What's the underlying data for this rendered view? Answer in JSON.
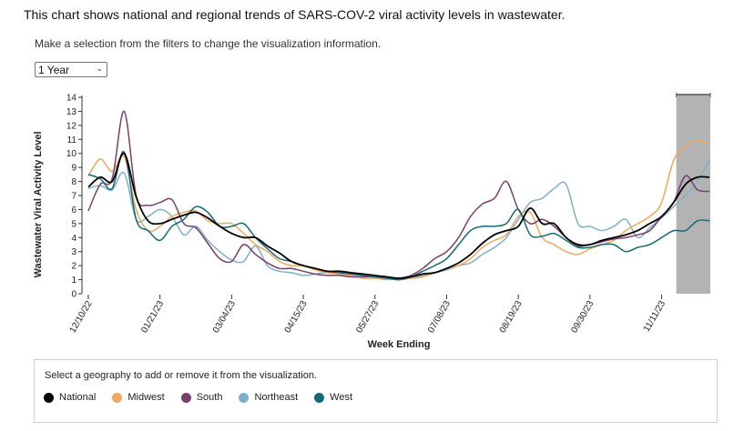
{
  "intro_text": "This chart shows national and regional trends of SARS-COV-2 viral activity levels in wastewater.",
  "filter_hint": "Make a selection from the filters to change the visualization information.",
  "range_select": {
    "value": "1 Year"
  },
  "legend": {
    "hint": "Select a geography to add or remove it from the visualization.",
    "items": [
      {
        "label": "National",
        "color": "#000000"
      },
      {
        "label": "Midwest",
        "color": "#f2a75e"
      },
      {
        "label": "South",
        "color": "#7b3f6e"
      },
      {
        "label": "Northeast",
        "color": "#7fb0c8"
      },
      {
        "label": "West",
        "color": "#146a72"
      }
    ]
  },
  "chart_data": {
    "type": "line",
    "xlabel": "Week Ending",
    "ylabel": "Wastewater Viral Activity Level",
    "ylim": [
      0,
      14
    ],
    "yticks": [
      0,
      1,
      2,
      3,
      4,
      5,
      6,
      7,
      8,
      9,
      10,
      11,
      12,
      13,
      14
    ],
    "xtick_labels": [
      "12/10/22",
      "01/21/23",
      "03/04/23",
      "04/15/23",
      "05/27/23",
      "07/08/23",
      "08/19/23",
      "09/30/23",
      "11/11/23"
    ],
    "x": [
      "12/10/22",
      "12/17/22",
      "12/24/22",
      "12/31/22",
      "01/07/23",
      "01/14/23",
      "01/21/23",
      "01/28/23",
      "02/04/23",
      "02/11/23",
      "02/18/23",
      "02/25/23",
      "03/04/23",
      "03/11/23",
      "03/18/23",
      "03/25/23",
      "04/01/23",
      "04/08/23",
      "04/15/23",
      "04/22/23",
      "04/29/23",
      "05/06/23",
      "05/13/23",
      "05/20/23",
      "05/27/23",
      "06/03/23",
      "06/10/23",
      "06/17/23",
      "06/24/23",
      "07/01/23",
      "07/08/23",
      "07/15/23",
      "07/22/23",
      "07/29/23",
      "08/05/23",
      "08/12/23",
      "08/19/23",
      "08/26/23",
      "09/02/23",
      "09/09/23",
      "09/16/23",
      "09/23/23",
      "09/30/23",
      "10/07/23",
      "10/14/23",
      "10/21/23",
      "10/28/23",
      "11/04/23",
      "11/11/23",
      "11/18/23",
      "11/25/23",
      "12/02/23",
      "12/09/23"
    ],
    "highlight": "provisional data (last 4 weeks)",
    "series": [
      {
        "name": "National",
        "color": "#000000",
        "values": [
          7.6,
          8.3,
          8.0,
          10.0,
          6.9,
          5.2,
          5.0,
          5.3,
          5.6,
          5.8,
          5.4,
          4.8,
          4.3,
          4.0,
          4.0,
          3.4,
          2.9,
          2.3,
          2.0,
          1.8,
          1.6,
          1.6,
          1.5,
          1.4,
          1.3,
          1.2,
          1.1,
          1.2,
          1.4,
          1.5,
          1.8,
          2.2,
          2.8,
          3.6,
          4.2,
          4.5,
          4.8,
          6.1,
          5.0,
          5.0,
          4.0,
          3.5,
          3.5,
          3.8,
          4.0,
          4.2,
          4.5,
          5.0,
          5.5,
          6.5,
          7.8,
          8.3,
          8.3
        ]
      },
      {
        "name": "Midwest",
        "color": "#f2a75e",
        "values": [
          8.4,
          9.6,
          8.7,
          9.8,
          6.0,
          4.5,
          4.8,
          5.5,
          5.8,
          5.9,
          5.2,
          5.0,
          5.0,
          4.3,
          3.5,
          3.0,
          2.3,
          2.0,
          2.0,
          1.7,
          1.5,
          1.4,
          1.3,
          1.1,
          1.1,
          1.0,
          1.1,
          1.1,
          1.2,
          1.5,
          1.8,
          2.0,
          2.5,
          3.3,
          3.8,
          4.2,
          5.5,
          5.8,
          4.0,
          3.5,
          3.0,
          2.8,
          3.2,
          3.5,
          3.8,
          4.5,
          5.0,
          5.5,
          6.5,
          9.5,
          10.5,
          10.9,
          10.7
        ]
      },
      {
        "name": "South",
        "color": "#7b3f6e",
        "values": [
          5.9,
          7.8,
          8.2,
          13.0,
          7.0,
          6.3,
          6.5,
          6.7,
          5.0,
          4.7,
          3.6,
          2.5,
          2.3,
          3.5,
          2.8,
          2.2,
          1.8,
          1.8,
          1.6,
          1.4,
          1.3,
          1.3,
          1.2,
          1.2,
          1.2,
          1.1,
          1.1,
          1.3,
          1.8,
          2.5,
          3.0,
          4.0,
          5.5,
          6.4,
          6.8,
          8.0,
          6.0,
          5.0,
          5.3,
          4.8,
          4.0,
          3.4,
          3.5,
          3.7,
          3.9,
          4.0,
          4.2,
          4.5,
          5.5,
          6.5,
          8.4,
          7.4,
          7.3
        ]
      },
      {
        "name": "Northeast",
        "color": "#7fb0c8",
        "values": [
          7.5,
          7.7,
          7.4,
          8.6,
          5.3,
          5.5,
          6.0,
          5.5,
          4.2,
          4.8,
          3.8,
          3.0,
          2.4,
          2.3,
          3.4,
          2.0,
          1.6,
          1.5,
          1.3,
          1.4,
          1.5,
          1.4,
          1.3,
          1.3,
          1.2,
          1.1,
          1.0,
          1.1,
          1.3,
          1.5,
          1.7,
          2.0,
          2.2,
          2.8,
          3.3,
          4.0,
          5.3,
          6.5,
          6.8,
          7.5,
          7.8,
          5.0,
          4.8,
          4.5,
          4.8,
          5.3,
          4.0,
          4.7,
          5.4,
          6.2,
          7.0,
          8.0,
          9.5
        ]
      },
      {
        "name": "West",
        "color": "#146a72",
        "values": [
          8.5,
          8.2,
          7.5,
          10.1,
          5.3,
          4.5,
          3.8,
          4.8,
          5.3,
          6.2,
          5.8,
          4.8,
          4.8,
          5.0,
          4.0,
          3.2,
          2.5,
          2.3,
          2.0,
          1.8,
          1.6,
          1.5,
          1.4,
          1.3,
          1.2,
          1.1,
          1.0,
          1.2,
          1.6,
          2.0,
          2.5,
          3.5,
          4.5,
          4.8,
          4.8,
          5.0,
          6.0,
          4.2,
          4.1,
          4.3,
          3.8,
          3.3,
          3.3,
          3.5,
          3.5,
          3.0,
          3.3,
          3.5,
          4.0,
          4.5,
          4.5,
          5.2,
          5.2
        ]
      }
    ]
  }
}
